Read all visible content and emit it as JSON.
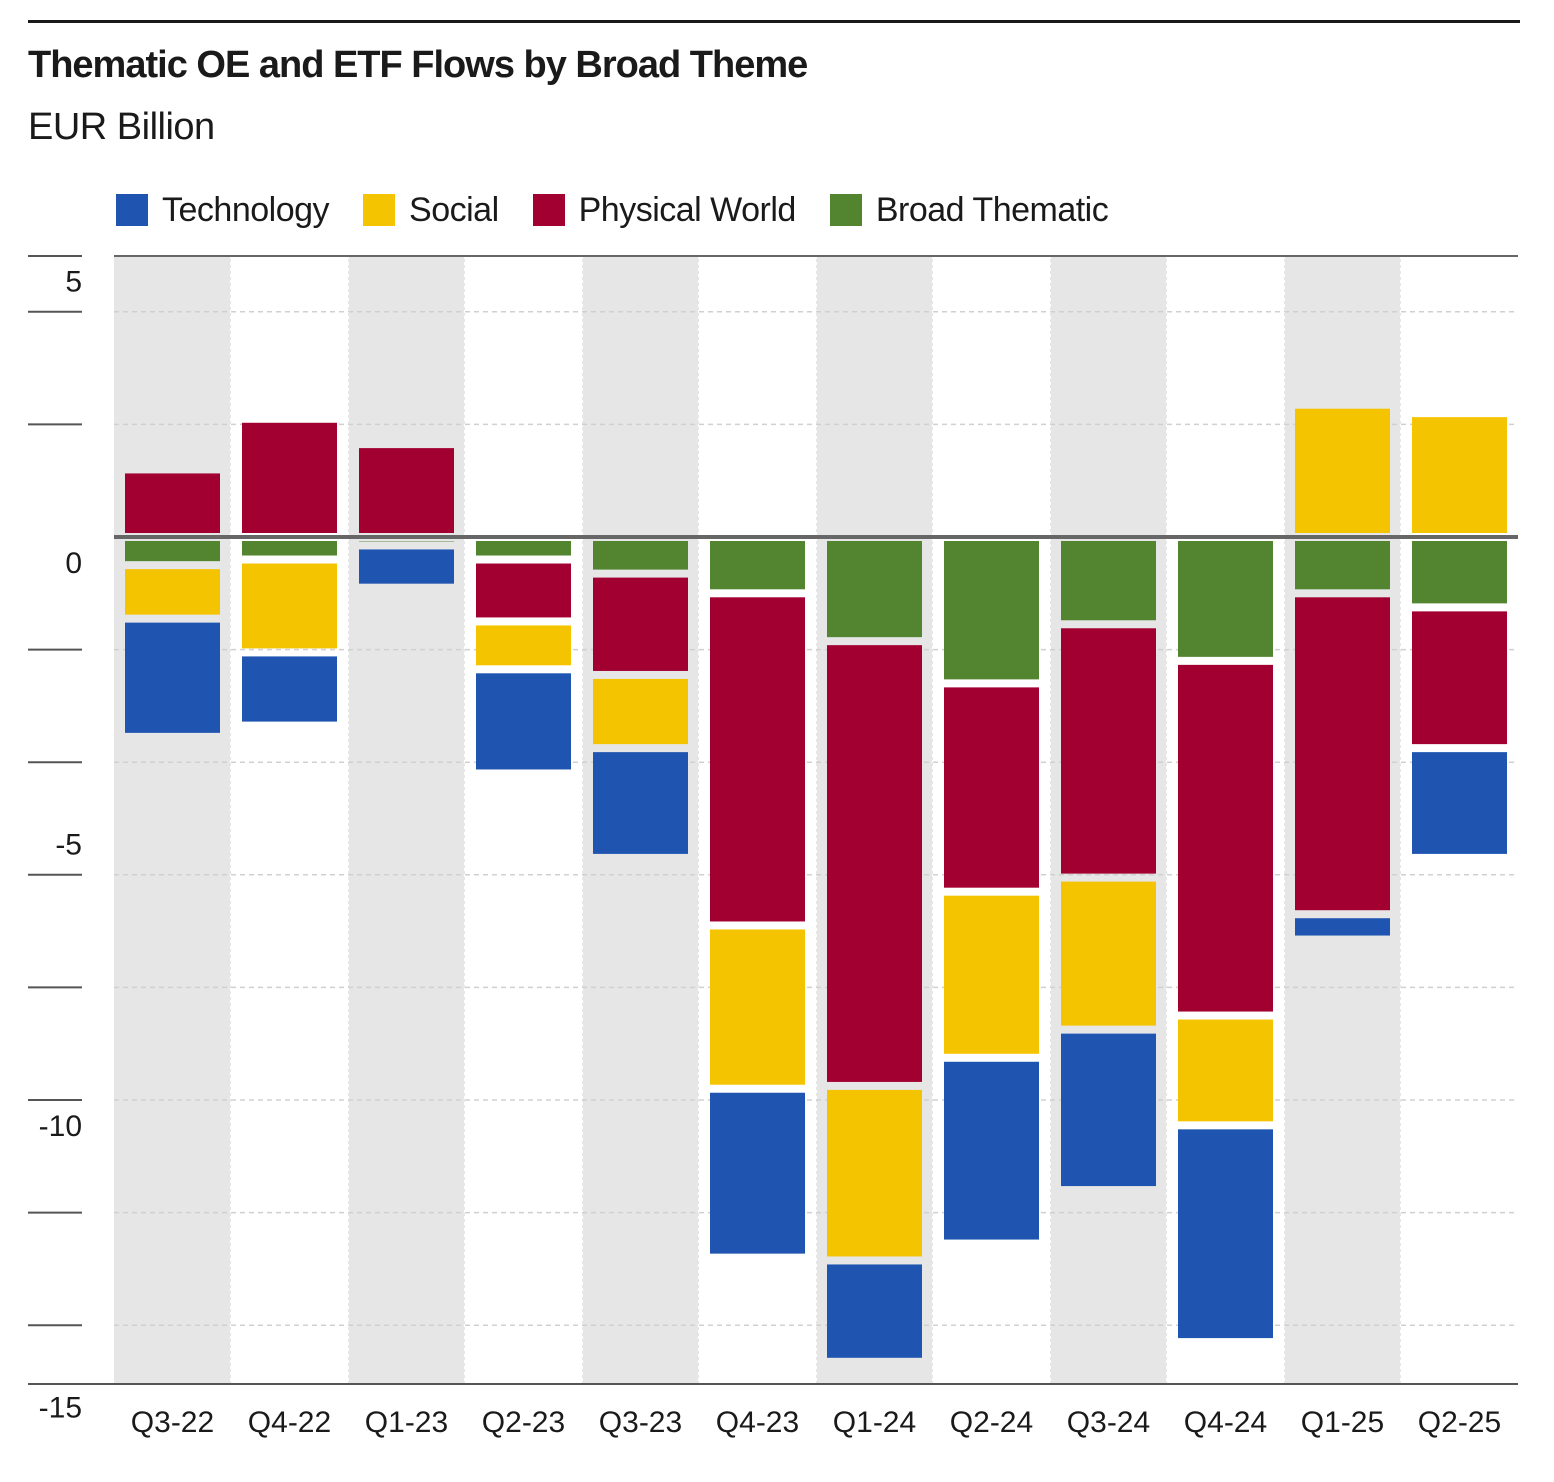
{
  "title": "Thematic OE and ETF Flows by Broad Theme",
  "subtitle": "EUR Billion",
  "legend": [
    {
      "label": "Technology",
      "color": "#1F55B0"
    },
    {
      "label": "Social",
      "color": "#F5C400"
    },
    {
      "label": "Physical World",
      "color": "#A30032"
    },
    {
      "label": "Broad Thematic",
      "color": "#538530"
    }
  ],
  "chart_data": {
    "type": "bar",
    "stacked": true,
    "title": "Thematic OE and ETF Flows by Broad Theme",
    "ylabel": "EUR Billion",
    "xlabel": "",
    "ylim": [
      -15.5,
      5.5
    ],
    "yticks": [
      5,
      0,
      -5,
      -10,
      -15
    ],
    "ytick_labels": [
      "5",
      "0",
      "-5",
      "-10",
      "-15"
    ],
    "grid": "dashed horizontal, alternating gray column bands",
    "legend_position": "top-left",
    "categories": [
      "Q3-22",
      "Q4-22",
      "Q1-23",
      "Q2-23",
      "Q3-23",
      "Q4-23",
      "Q1-24",
      "Q2-24",
      "Q3-24",
      "Q4-24",
      "Q1-25",
      "Q2-25"
    ],
    "series": [
      {
        "name": "Broad Thematic",
        "color": "#538530",
        "values": [
          -0.5,
          -0.4,
          -0.15,
          -0.4,
          -0.65,
          -1.0,
          -1.85,
          -2.6,
          -1.55,
          -2.2,
          -1.0,
          -1.25
        ]
      },
      {
        "name": "Physical World",
        "color": "#A30032",
        "values": [
          1.2,
          2.1,
          1.65,
          -1.1,
          -1.8,
          -5.9,
          -7.9,
          -3.7,
          -4.5,
          -6.3,
          -5.7,
          -2.5
        ]
      },
      {
        "name": "Social",
        "color": "#F5C400",
        "values": [
          -0.95,
          -1.65,
          0,
          -0.85,
          -1.3,
          -2.9,
          -3.1,
          -2.95,
          -2.7,
          -1.95,
          2.35,
          2.2
        ]
      },
      {
        "name": "Technology",
        "color": "#1F55B0",
        "values": [
          -2.1,
          -1.3,
          -0.75,
          -1.85,
          -1.95,
          -3.0,
          -1.8,
          -3.3,
          -2.85,
          -3.85,
          -0.45,
          -1.95
        ]
      }
    ]
  }
}
